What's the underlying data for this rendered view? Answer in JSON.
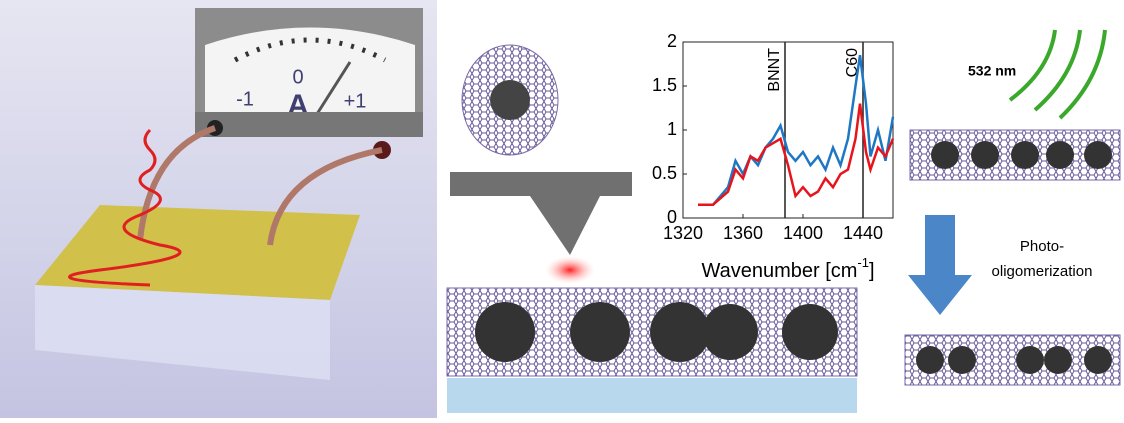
{
  "meter": {
    "labels": [
      "-1",
      "0",
      "+1"
    ],
    "unit": "A"
  },
  "chart_data": {
    "type": "line",
    "x": [
      1330,
      1340,
      1350,
      1355,
      1360,
      1365,
      1370,
      1375,
      1380,
      1385,
      1390,
      1395,
      1400,
      1405,
      1410,
      1415,
      1420,
      1425,
      1430,
      1435,
      1438,
      1442,
      1445,
      1450,
      1455,
      1460
    ],
    "series": [
      {
        "color": "#1f77c4",
        "values": [
          0.15,
          0.15,
          0.35,
          0.65,
          0.5,
          0.7,
          0.6,
          0.8,
          0.9,
          1.05,
          0.75,
          0.65,
          0.75,
          0.6,
          0.7,
          0.55,
          0.8,
          0.6,
          0.9,
          1.5,
          1.85,
          1.3,
          0.7,
          1.0,
          0.65,
          1.15
        ]
      },
      {
        "color": "#e8141c",
        "values": [
          0.15,
          0.15,
          0.3,
          0.55,
          0.45,
          0.7,
          0.65,
          0.8,
          0.85,
          0.9,
          0.6,
          0.25,
          0.35,
          0.25,
          0.3,
          0.45,
          0.35,
          0.5,
          0.55,
          0.9,
          1.3,
          0.75,
          0.55,
          0.8,
          0.7,
          0.9
        ]
      }
    ],
    "xlim": [
      1320,
      1460
    ],
    "ylim": [
      0,
      2
    ],
    "xticks": [
      1320,
      1360,
      1400,
      1440
    ],
    "yticks": [
      0,
      0.5,
      1,
      1.5,
      2
    ],
    "xlabel": "Wavenumber [cm",
    "xlabel_sup": "-1",
    "xlabel_end": "]",
    "vlines": [
      {
        "x": 1388,
        "label": "BNNT"
      },
      {
        "x": 1440,
        "label": "C60"
      }
    ]
  },
  "annotations": {
    "wavelength": "532 nm",
    "process_line1": "Photo-",
    "process_line2": "oligomerization"
  }
}
